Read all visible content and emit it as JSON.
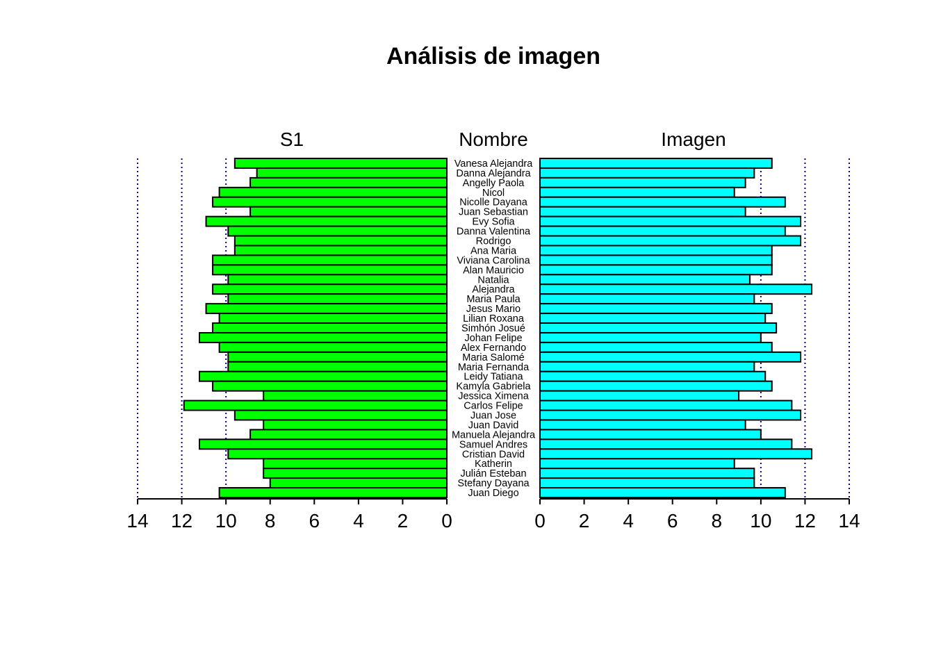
{
  "chart_data": {
    "type": "bar",
    "title": "Análisis de imagen",
    "panel_labels": {
      "left": "S1",
      "center": "Nombre",
      "right": "Imagen"
    },
    "xlim": [
      0,
      14
    ],
    "ticks": [
      0,
      2,
      4,
      6,
      8,
      10,
      12,
      14
    ],
    "grid": "dotted vertical lines at 10, 12, 14 behind bars",
    "colors": {
      "left": "#00ff00",
      "right": "#00ffff",
      "grid": "#00008b",
      "edge": "#000000"
    },
    "categories": [
      "Vanesa Alejandra",
      "Danna Alejandra",
      "Angelly Paola",
      "Nicol",
      "Nicolle Dayana",
      "Juan Sebastian",
      "Evy Sofia",
      "Danna Valentina",
      "Rodrigo",
      "Ana Maria",
      "Viviana Carolina",
      "Alan Mauricio",
      "Natalia",
      "Alejandra",
      "Maria Paula",
      "Jesus Mario",
      "Lilian Roxana",
      "Simhón Josué",
      "Johan Felipe",
      "Alex Fernando",
      "Maria Salomé",
      "Maria Fernanda",
      "Leidy Tatiana",
      "Kamyla Gabriela",
      "Jessica Ximena",
      "Carlos Felipe",
      "Juan Jose",
      "Juan David",
      "Manuela Alejandra",
      "Samuel Andres",
      "Cristian David",
      "Katherin",
      "Julián Esteban",
      "Stefany Dayana",
      "Juan Diego"
    ],
    "series": [
      {
        "name": "S1",
        "values": [
          9.6,
          8.6,
          8.9,
          10.3,
          10.6,
          8.9,
          10.9,
          9.9,
          9.6,
          9.6,
          10.6,
          10.6,
          9.9,
          10.6,
          9.9,
          10.9,
          10.3,
          10.6,
          11.2,
          10.3,
          9.9,
          9.9,
          11.2,
          10.6,
          8.3,
          11.9,
          9.6,
          8.3,
          8.9,
          11.2,
          9.9,
          8.3,
          8.3,
          8.0,
          10.3
        ]
      },
      {
        "name": "Imagen",
        "values": [
          10.5,
          9.7,
          9.3,
          8.8,
          11.1,
          9.3,
          11.8,
          11.1,
          11.8,
          10.5,
          10.5,
          10.5,
          9.5,
          12.3,
          9.7,
          10.5,
          10.2,
          10.7,
          10.0,
          10.5,
          11.8,
          9.7,
          10.2,
          10.5,
          9.0,
          11.4,
          11.8,
          9.3,
          10.0,
          11.4,
          12.3,
          8.8,
          9.7,
          9.7,
          11.1
        ]
      }
    ]
  }
}
